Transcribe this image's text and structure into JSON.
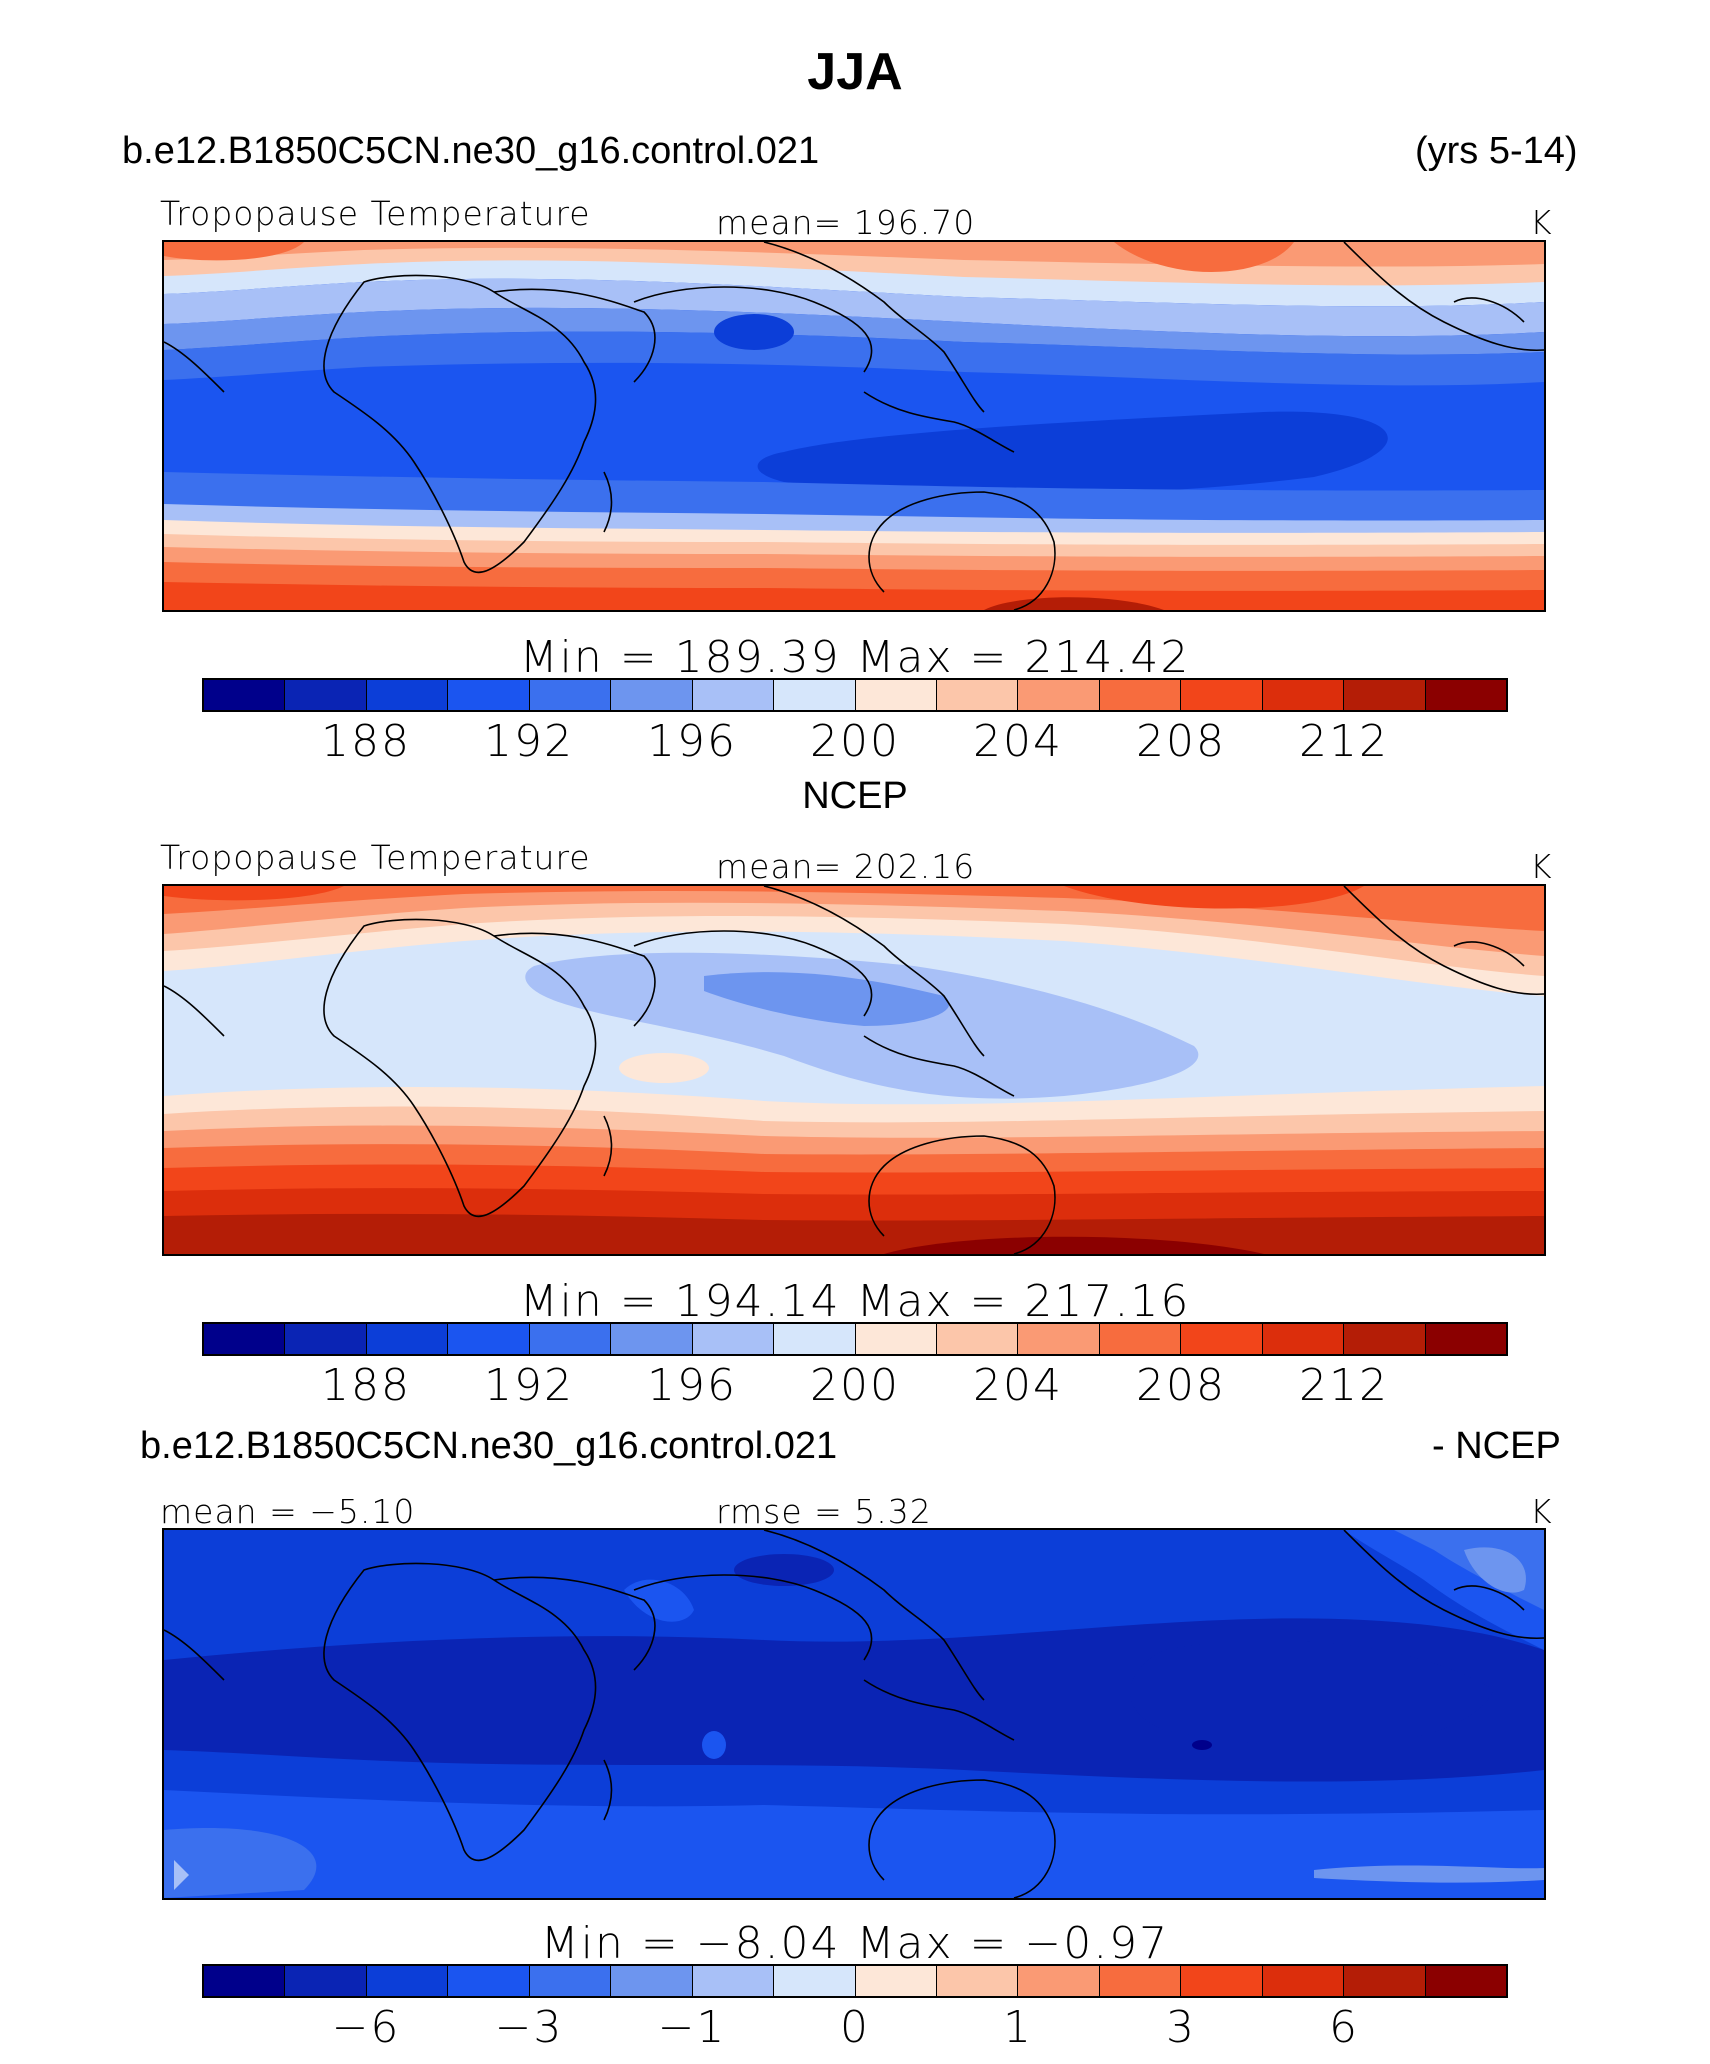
{
  "title": "JJA",
  "model_case": "b.e12.B1850C5CN.ne30_g16.control.021",
  "years": "(yrs 5-14)",
  "colors": [
    "#00008b",
    "#0a24b4",
    "#0c3ed8",
    "#1b55f0",
    "#3b70ee",
    "#6d95ef",
    "#a8c0f7",
    "#d6e6fb",
    "#fde7d8",
    "#fcc6aa",
    "#fa9a74",
    "#f76c3e",
    "#f2451a",
    "#dc2e0c",
    "#b41d06",
    "#8b0000"
  ],
  "panels": [
    {
      "header_left": "",
      "header_right": "",
      "left": "Tropopause Temperature",
      "center": "mean= 196.70",
      "right": "K",
      "minmax": "Min  =  189.39  Max  =  214.42",
      "ticks": [
        "188",
        "192",
        "196",
        "200",
        "204",
        "208",
        "212"
      ],
      "field_min": 189.39,
      "field_max": 214.42,
      "field_mean": 196.7
    },
    {
      "header_left": "NCEP",
      "header_right": "",
      "left": "Tropopause Temperature",
      "center": "mean= 202.16",
      "right": "K",
      "minmax": "Min  =  194.14  Max  =  217.16",
      "ticks": [
        "188",
        "192",
        "196",
        "200",
        "204",
        "208",
        "212"
      ],
      "field_min": 194.14,
      "field_max": 217.16,
      "field_mean": 202.16
    },
    {
      "header_left": "b.e12.B1850C5CN.ne30_g16.control.021",
      "header_right": "- NCEP",
      "left": "mean =   −5.10",
      "center": "rmse =     5.32",
      "right": "K",
      "minmax": "Min  =    −8.04  Max  =    −0.97",
      "ticks": [
        "−6",
        "−3",
        "−1",
        "0",
        "1",
        "3",
        "6"
      ],
      "field_min": -8.04,
      "field_max": -0.97,
      "field_mean": -5.1
    }
  ]
}
